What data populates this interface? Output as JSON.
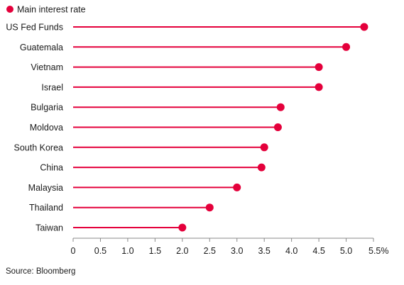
{
  "legend": {
    "label": "Main interest rate"
  },
  "source": "Source: Bloomberg",
  "colors": {
    "lollipop": "#e4003b",
    "axis": "#888888",
    "text": "#1a1a1a"
  },
  "chart_data": {
    "type": "lollipop",
    "orientation": "horizontal",
    "categories": [
      "US Fed Funds",
      "Guatemala",
      "Vietnam",
      "Israel",
      "Bulgaria",
      "Moldova",
      "South Korea",
      "China",
      "Malaysia",
      "Thailand",
      "Taiwan"
    ],
    "series": [
      {
        "name": "Main interest rate",
        "values": [
          5.33,
          5.0,
          4.5,
          4.5,
          3.8,
          3.75,
          3.5,
          3.45,
          3.0,
          2.5,
          2.0
        ]
      }
    ],
    "xlim": [
      0,
      5.5
    ],
    "xticks": [
      0,
      0.5,
      1.0,
      1.5,
      2.0,
      2.5,
      3.0,
      3.5,
      4.0,
      4.5,
      5.0,
      5.5
    ],
    "xtick_labels": [
      "0",
      "0.5",
      "1.0",
      "1.5",
      "2.0",
      "2.5",
      "3.0",
      "3.5",
      "4.0",
      "4.5",
      "5.0",
      "5.5%"
    ],
    "legend_position": "top-left",
    "grid": false
  }
}
